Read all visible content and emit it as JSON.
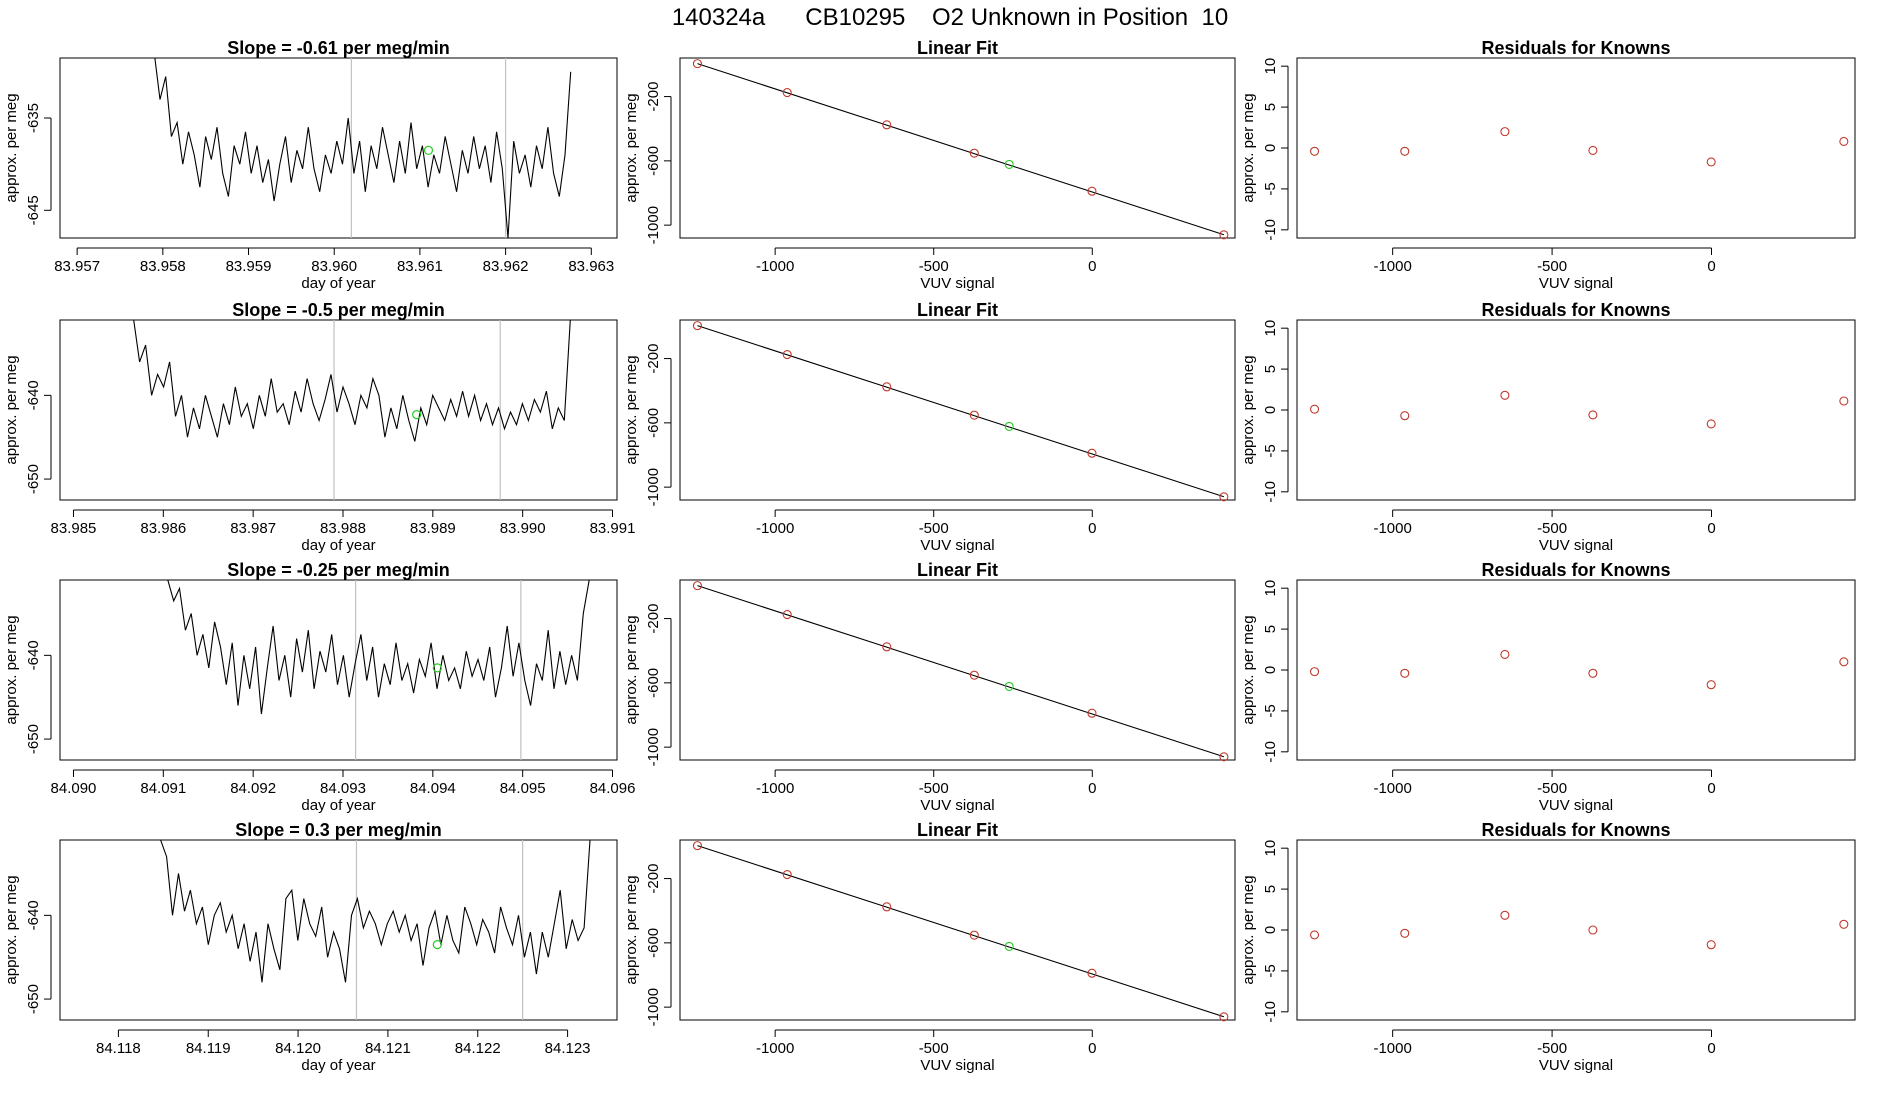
{
  "main_title": "140324a      CB10295    O2 Unknown in Position  10",
  "colors": {
    "line": "#000000",
    "known_point": "#c0392b",
    "unknown_point": "#22cc22",
    "event_line": "#c0c0c0"
  },
  "chart_data": [
    {
      "type": "line",
      "panel": "row1-signal",
      "title": "Slope =  -0.61  per meg/min",
      "xlabel": "day of year",
      "ylabel": "approx. per meg",
      "xlim": [
        83.9568,
        83.9633
      ],
      "ylim": [
        -648,
        -628.5
      ],
      "xticks": [
        83.957,
        83.958,
        83.959,
        83.96,
        83.961,
        83.962,
        83.963
      ],
      "xtick_labels": [
        "83.957",
        "83.958",
        "83.959",
        "83.960",
        "83.961",
        "83.962",
        "83.963"
      ],
      "yticks": [
        -635,
        -645
      ],
      "ytick_labels": [
        "-635",
        "-645"
      ],
      "vlines": [
        83.9602,
        83.962
      ],
      "series_x_range": [
        83.9579,
        83.96276
      ],
      "series": [
        -628,
        -633,
        -630.5,
        -637,
        -635.5,
        -640,
        -636.5,
        -639,
        -642.5,
        -637,
        -639.5,
        -636,
        -641,
        -643.5,
        -638,
        -640,
        -636.5,
        -641,
        -638,
        -642,
        -639.5,
        -644,
        -640,
        -637,
        -642,
        -638.5,
        -640.5,
        -636,
        -640.5,
        -643,
        -639,
        -641,
        -637.5,
        -640,
        -635,
        -641,
        -637.5,
        -643,
        -638,
        -640.5,
        -636,
        -639,
        -642,
        -637.5,
        -641,
        -635.5,
        -640.5,
        -638,
        -642.5,
        -639,
        -641,
        -637,
        -640,
        -643,
        -638.5,
        -641,
        -637,
        -640.5,
        -638,
        -642,
        -636.5,
        -640.5,
        -648,
        -637.5,
        -641,
        -639,
        -642.5,
        -638,
        -640.5,
        -636,
        -641,
        -643.5,
        -639,
        -630
      ],
      "unknown_point": {
        "x": 83.9611,
        "y": -638.5
      }
    },
    {
      "type": "scatter",
      "panel": "row1-fit",
      "title": "Linear Fit",
      "xlabel": "VUV signal",
      "ylabel": "approx. per meg",
      "xlim": [
        -1300,
        450
      ],
      "ylim": [
        -1080,
        40
      ],
      "xticks": [
        -1000,
        -500,
        0
      ],
      "xtick_labels": [
        "-1000",
        "-500",
        "0"
      ],
      "yticks": [
        -200,
        -600,
        -1000
      ],
      "ytick_labels": [
        "-200",
        "-600",
        "-1000"
      ],
      "fit_line": [
        [
          -1245,
          5
        ],
        [
          415,
          -1060
        ]
      ],
      "known_points": [
        [
          -1245,
          5
        ],
        [
          -962,
          -175
        ],
        [
          -648,
          -376
        ],
        [
          -372,
          -552
        ],
        [
          -1,
          -789
        ],
        [
          415,
          -1060
        ]
      ],
      "unknown_point": [
        -262,
        -622
      ]
    },
    {
      "type": "scatter",
      "panel": "row1-residuals",
      "title": "Residuals for Knowns",
      "xlabel": "VUV signal",
      "ylabel": "approx. per meg",
      "xlim": [
        -1300,
        450
      ],
      "ylim": [
        -11,
        11
      ],
      "xticks": [
        -1000,
        -500,
        0
      ],
      "xtick_labels": [
        "-1000",
        "-500",
        "0"
      ],
      "yticks": [
        10,
        5,
        0,
        -5,
        -10
      ],
      "ytick_labels": [
        "10",
        "5",
        "0",
        "-5",
        "-10"
      ],
      "points": [
        [
          -1245,
          -0.4
        ],
        [
          -962,
          -0.4
        ],
        [
          -648,
          2.0
        ],
        [
          -372,
          -0.3
        ],
        [
          -1,
          -1.7
        ],
        [
          415,
          0.8
        ]
      ]
    },
    {
      "type": "line",
      "panel": "row2-signal",
      "title": "Slope =  -0.5  per meg/min",
      "xlabel": "day of year",
      "ylabel": "approx. per meg",
      "xlim": [
        83.98485,
        83.99105
      ],
      "ylim": [
        -652.5,
        -631
      ],
      "xticks": [
        83.985,
        83.986,
        83.987,
        83.988,
        83.989,
        83.99,
        83.991
      ],
      "xtick_labels": [
        "83.985",
        "83.986",
        "83.987",
        "83.988",
        "83.989",
        "83.990",
        "83.991"
      ],
      "yticks": [
        -640,
        -650
      ],
      "ytick_labels": [
        "-640",
        "-650"
      ],
      "vlines": [
        83.9879,
        83.98975
      ],
      "series_x_range": [
        83.98567,
        83.99053
      ],
      "series": [
        -631,
        -636,
        -634,
        -640,
        -637.5,
        -639,
        -636,
        -642.5,
        -640,
        -645,
        -641.5,
        -644,
        -640,
        -642.5,
        -645,
        -641,
        -643.5,
        -639,
        -642.5,
        -641,
        -644,
        -640,
        -642.5,
        -638,
        -642,
        -641,
        -643.5,
        -639.5,
        -642,
        -638,
        -641,
        -643,
        -640.5,
        -637.5,
        -642,
        -639,
        -641,
        -643.5,
        -640,
        -641.5,
        -638,
        -640,
        -645,
        -641.5,
        -644,
        -640,
        -643,
        -645.5,
        -641.5,
        -643.5,
        -640,
        -641.5,
        -643,
        -640.5,
        -642.5,
        -639.5,
        -642.5,
        -640,
        -643,
        -641,
        -643.5,
        -641.5,
        -644,
        -642,
        -643.5,
        -641,
        -643,
        -640.5,
        -642,
        -639.5,
        -644,
        -641.5,
        -643,
        -631
      ],
      "unknown_point": {
        "x": 83.98882,
        "y": -642.3
      }
    },
    {
      "type": "scatter",
      "panel": "row2-fit",
      "title": "Linear Fit",
      "xlabel": "VUV signal",
      "ylabel": "approx. per meg",
      "xlim": [
        -1300,
        450
      ],
      "ylim": [
        -1080,
        40
      ],
      "xticks": [
        -1000,
        -500,
        0
      ],
      "xtick_labels": [
        "-1000",
        "-500",
        "0"
      ],
      "yticks": [
        -200,
        -600,
        -1000
      ],
      "ytick_labels": [
        "-200",
        "-600",
        "-1000"
      ],
      "fit_line": [
        [
          -1245,
          5
        ],
        [
          415,
          -1060
        ]
      ],
      "known_points": [
        [
          -1245,
          5
        ],
        [
          -962,
          -175
        ],
        [
          -648,
          -376
        ],
        [
          -372,
          -552
        ],
        [
          -1,
          -789
        ],
        [
          415,
          -1060
        ]
      ],
      "unknown_point": [
        -262,
        -622
      ]
    },
    {
      "type": "scatter",
      "panel": "row2-residuals",
      "title": "Residuals for Knowns",
      "xlabel": "VUV signal",
      "ylabel": "approx. per meg",
      "xlim": [
        -1300,
        450
      ],
      "ylim": [
        -11,
        11
      ],
      "xticks": [
        -1000,
        -500,
        0
      ],
      "xtick_labels": [
        "-1000",
        "-500",
        "0"
      ],
      "yticks": [
        10,
        5,
        0,
        -5,
        -10
      ],
      "ytick_labels": [
        "10",
        "5",
        "0",
        "-5",
        "-10"
      ],
      "points": [
        [
          -1245,
          0.1
        ],
        [
          -962,
          -0.7
        ],
        [
          -648,
          1.8
        ],
        [
          -372,
          -0.6
        ],
        [
          -1,
          -1.7
        ],
        [
          415,
          1.1
        ]
      ]
    },
    {
      "type": "line",
      "panel": "row3-signal",
      "title": "Slope =  -0.25  per meg/min",
      "xlabel": "day of year",
      "ylabel": "approx. per meg",
      "xlim": [
        84.08985,
        84.09605
      ],
      "ylim": [
        -652.5,
        -631
      ],
      "xticks": [
        84.09,
        84.091,
        84.092,
        84.093,
        84.094,
        84.095,
        84.096
      ],
      "xtick_labels": [
        "84.090",
        "84.091",
        "84.092",
        "84.093",
        "84.094",
        "84.095",
        "84.096"
      ],
      "yticks": [
        -640,
        -650
      ],
      "ytick_labels": [
        "-640",
        "-650"
      ],
      "vlines": [
        84.09314,
        84.09498
      ],
      "series_x_range": [
        84.09105,
        84.09574
      ],
      "series": [
        -631,
        -633.5,
        -632,
        -637,
        -635,
        -640,
        -637.5,
        -641.5,
        -636,
        -639,
        -643.5,
        -638.5,
        -646,
        -640,
        -644,
        -639,
        -647,
        -641.5,
        -636.5,
        -643,
        -640,
        -645,
        -638,
        -642,
        -637,
        -644,
        -639.5,
        -642,
        -637.5,
        -643.5,
        -640,
        -645,
        -641,
        -637.5,
        -643,
        -639,
        -645,
        -641,
        -643.5,
        -638.5,
        -643,
        -641,
        -644.5,
        -640.5,
        -642.5,
        -638.5,
        -644,
        -640,
        -643,
        -641.5,
        -644,
        -639.5,
        -642.5,
        -640.5,
        -643,
        -639,
        -645,
        -641.5,
        -636.5,
        -642.5,
        -638.5,
        -643,
        -646,
        -641,
        -643,
        -637,
        -644,
        -639.5,
        -643.5,
        -640,
        -643,
        -635,
        -631
      ],
      "unknown_point": {
        "x": 84.09405,
        "y": -641.5
      }
    },
    {
      "type": "scatter",
      "panel": "row3-fit",
      "title": "Linear Fit",
      "xlabel": "VUV signal",
      "ylabel": "approx. per meg",
      "xlim": [
        -1300,
        450
      ],
      "ylim": [
        -1080,
        40
      ],
      "xticks": [
        -1000,
        -500,
        0
      ],
      "xtick_labels": [
        "-1000",
        "-500",
        "0"
      ],
      "yticks": [
        -200,
        -600,
        -1000
      ],
      "ytick_labels": [
        "-200",
        "-600",
        "-1000"
      ],
      "fit_line": [
        [
          -1245,
          5
        ],
        [
          415,
          -1060
        ]
      ],
      "known_points": [
        [
          -1245,
          5
        ],
        [
          -962,
          -175
        ],
        [
          -648,
          -376
        ],
        [
          -372,
          -552
        ],
        [
          -1,
          -789
        ],
        [
          415,
          -1060
        ]
      ],
      "unknown_point": [
        -262,
        -622
      ]
    },
    {
      "type": "scatter",
      "panel": "row3-residuals",
      "title": "Residuals for Knowns",
      "xlabel": "VUV signal",
      "ylabel": "approx. per meg",
      "xlim": [
        -1300,
        450
      ],
      "ylim": [
        -11,
        11
      ],
      "xticks": [
        -1000,
        -500,
        0
      ],
      "xtick_labels": [
        "-1000",
        "-500",
        "0"
      ],
      "yticks": [
        10,
        5,
        0,
        -5,
        -10
      ],
      "ytick_labels": [
        "10",
        "5",
        "0",
        "-5",
        "-10"
      ],
      "points": [
        [
          -1245,
          -0.2
        ],
        [
          -962,
          -0.4
        ],
        [
          -648,
          1.9
        ],
        [
          -372,
          -0.4
        ],
        [
          -1,
          -1.8
        ],
        [
          415,
          1.0
        ]
      ]
    },
    {
      "type": "line",
      "panel": "row4-signal",
      "title": "Slope =  0.3  per meg/min",
      "xlabel": "day of year",
      "ylabel": "approx. per meg",
      "xlim": [
        84.11735,
        84.12355
      ],
      "ylim": [
        -652.5,
        -631
      ],
      "xticks": [
        84.118,
        84.119,
        84.12,
        84.121,
        84.122,
        84.123
      ],
      "xtick_labels": [
        "84.118",
        "84.119",
        "84.120",
        "84.121",
        "84.122",
        "84.123"
      ],
      "yticks": [
        -640,
        -650
      ],
      "ytick_labels": [
        "-640",
        "-650"
      ],
      "vlines": [
        84.12065,
        84.1225
      ],
      "series_x_range": [
        84.11847,
        84.12325
      ],
      "series": [
        -631,
        -633,
        -640,
        -635,
        -639.5,
        -637,
        -641,
        -639,
        -643.5,
        -640,
        -638.5,
        -642,
        -640,
        -644,
        -641,
        -645.5,
        -642,
        -648,
        -641,
        -644,
        -646.5,
        -638,
        -637,
        -643,
        -638,
        -641,
        -642.5,
        -639,
        -645,
        -642,
        -644,
        -648,
        -640,
        -638,
        -641.5,
        -639.5,
        -641,
        -643.5,
        -641,
        -639.5,
        -642,
        -640,
        -643,
        -641,
        -646,
        -641.5,
        -639.5,
        -643.5,
        -640,
        -643,
        -644.5,
        -639,
        -641,
        -643.5,
        -640.5,
        -642,
        -644.5,
        -639,
        -641.5,
        -643.5,
        -640,
        -645,
        -642,
        -647,
        -642,
        -645,
        -641,
        -637,
        -644,
        -640.5,
        -643,
        -641.5,
        -631
      ],
      "unknown_point": {
        "x": 84.12155,
        "y": -643.5
      }
    },
    {
      "type": "scatter",
      "panel": "row4-fit",
      "title": "Linear Fit",
      "xlabel": "VUV signal",
      "ylabel": "approx. per meg",
      "xlim": [
        -1300,
        450
      ],
      "ylim": [
        -1080,
        40
      ],
      "xticks": [
        -1000,
        -500,
        0
      ],
      "xtick_labels": [
        "-1000",
        "-500",
        "0"
      ],
      "yticks": [
        -200,
        -600,
        -1000
      ],
      "ytick_labels": [
        "-200",
        "-600",
        "-1000"
      ],
      "fit_line": [
        [
          -1245,
          5
        ],
        [
          415,
          -1060
        ]
      ],
      "known_points": [
        [
          -1245,
          5
        ],
        [
          -962,
          -175
        ],
        [
          -648,
          -376
        ],
        [
          -372,
          -552
        ],
        [
          -1,
          -789
        ],
        [
          415,
          -1060
        ]
      ],
      "unknown_point": [
        -262,
        -622
      ]
    },
    {
      "type": "scatter",
      "panel": "row4-residuals",
      "title": "Residuals for Knowns",
      "xlabel": "VUV signal",
      "ylabel": "approx. per meg",
      "xlim": [
        -1300,
        450
      ],
      "ylim": [
        -11,
        11
      ],
      "xticks": [
        -1000,
        -500,
        0
      ],
      "xtick_labels": [
        "-1000",
        "-500",
        "0"
      ],
      "yticks": [
        10,
        5,
        0,
        -5,
        -10
      ],
      "ytick_labels": [
        "10",
        "5",
        "0",
        "-5",
        "-10"
      ],
      "points": [
        [
          -1245,
          -0.6
        ],
        [
          -962,
          -0.4
        ],
        [
          -648,
          1.8
        ],
        [
          -372,
          0.0
        ],
        [
          -1,
          -1.8
        ],
        [
          415,
          0.7
        ]
      ]
    }
  ]
}
